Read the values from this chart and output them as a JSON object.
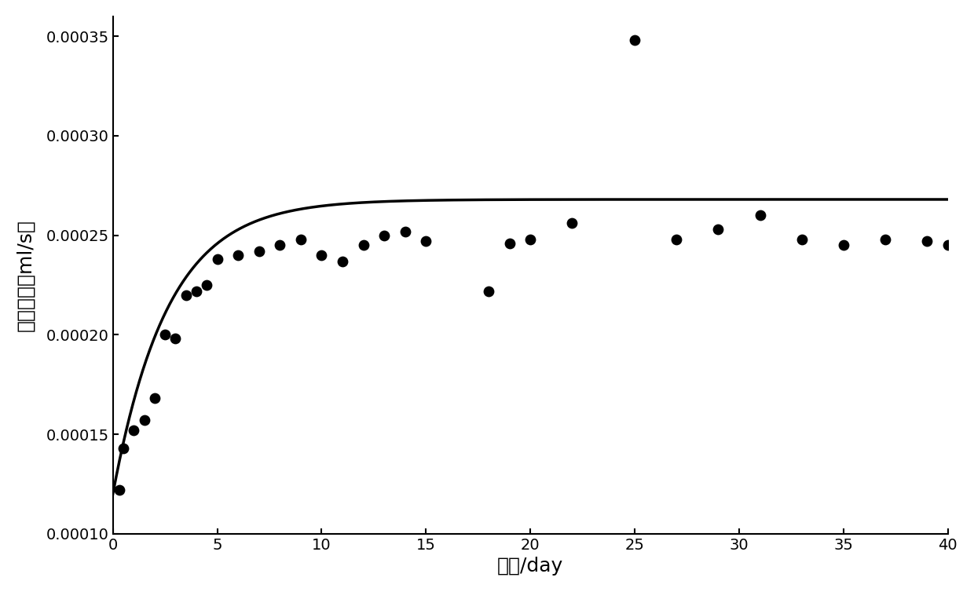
{
  "scatter_x": [
    0.3,
    0.5,
    1.0,
    1.5,
    2.0,
    2.5,
    3.0,
    3.5,
    4.0,
    4.5,
    5.0,
    6.0,
    7.0,
    8.0,
    9.0,
    10.0,
    11.0,
    12.0,
    13.0,
    14.0,
    15.0,
    18.0,
    19.0,
    20.0,
    22.0,
    25.0,
    27.0,
    29.0,
    31.0,
    33.0,
    35.0,
    37.0,
    39.0,
    40.0
  ],
  "scatter_y": [
    0.000122,
    0.000143,
    0.000152,
    0.000157,
    0.000168,
    0.0002,
    0.000198,
    0.00022,
    0.000222,
    0.000225,
    0.000238,
    0.00024,
    0.000242,
    0.000245,
    0.000248,
    0.00024,
    0.000237,
    0.000245,
    0.00025,
    0.000252,
    0.000247,
    0.000222,
    0.000246,
    0.000248,
    0.000256,
    0.000348,
    0.000248,
    0.000253,
    0.00026,
    0.000248,
    0.000245,
    0.000248,
    0.000247,
    0.000245
  ],
  "curve_A": 0.000268,
  "curve_B": 0.000148,
  "curve_k": 0.38,
  "xlim": [
    0,
    40
  ],
  "ylim": [
    0.0001,
    0.00036
  ],
  "xticks": [
    0,
    5,
    10,
    15,
    20,
    25,
    30,
    35,
    40
  ],
  "yticks": [
    0.0001,
    0.00015,
    0.0002,
    0.00025,
    0.0003,
    0.00035
  ],
  "xlabel": "时间/day",
  "ylabel": "扩散量／（ml/s）",
  "dot_color": "#000000",
  "line_color": "#000000",
  "background_color": "#ffffff",
  "dot_size": 80,
  "line_width": 2.5
}
